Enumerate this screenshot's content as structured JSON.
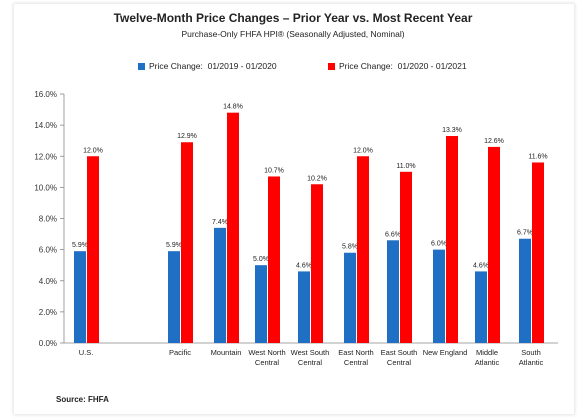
{
  "title": "Twelve-Month Price Changes – Prior Year vs. Most Recent Year",
  "subtitle": "Purchase-Only FHFA HPI® (Seasonally Adjusted, Nominal)",
  "source": "Source: FHFA",
  "chart_data": {
    "type": "bar",
    "title": "Twelve-Month Price Changes – Prior Year vs. Most Recent Year",
    "subtitle": "Purchase-Only FHFA HPI® (Seasonally Adjusted, Nominal)",
    "categories": [
      [
        "U.S."
      ],
      [
        "Pacific"
      ],
      [
        "Mountain"
      ],
      [
        "West North",
        "Central"
      ],
      [
        "West South",
        "Central"
      ],
      [
        "East North",
        "Central"
      ],
      [
        "East South",
        "Central"
      ],
      [
        "New England"
      ],
      [
        "Middle",
        "Atlantic"
      ],
      [
        "South",
        "Atlantic"
      ]
    ],
    "series": [
      {
        "name": "Price Change:  01/2019 - 01/2020",
        "color": "#1f6fc5",
        "values": [
          5.9,
          5.9,
          7.4,
          5.0,
          4.6,
          5.8,
          6.6,
          6.0,
          4.6,
          6.7
        ],
        "labels": [
          "5.9%",
          "5.9%",
          "7.4%",
          "5.0%",
          "4.6%",
          "5.8%",
          "6.6%",
          "6.0%",
          "4.6%",
          "6.7%"
        ]
      },
      {
        "name": "Price Change:  01/2020 - 01/2021",
        "color": "#ff0000",
        "values": [
          12.0,
          12.9,
          14.8,
          10.7,
          10.2,
          12.0,
          11.0,
          13.3,
          12.6,
          11.6
        ],
        "labels": [
          "12.0%",
          "12.9%",
          "14.8%",
          "10.7%",
          "10.2%",
          "12.0%",
          "11.0%",
          "13.3%",
          "12.6%",
          "11.6%"
        ]
      }
    ],
    "ylim": [
      0,
      16
    ],
    "yticks": [
      "0.0%",
      "2.0%",
      "4.0%",
      "6.0%",
      "8.0%",
      "10.0%",
      "12.0%",
      "14.0%",
      "16.0%"
    ],
    "grid": false,
    "legend": "top-center"
  }
}
